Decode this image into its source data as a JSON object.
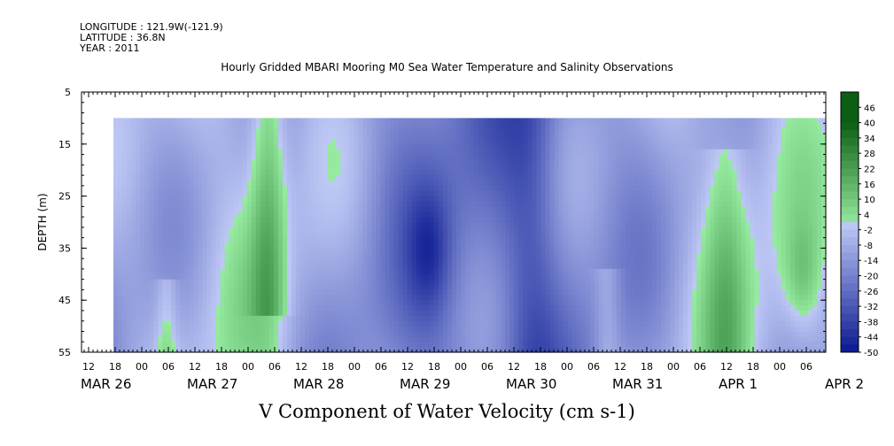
{
  "header": {
    "longitude": "LONGITUDE : 121.9W(-121.9)",
    "latitude": "LATITUDE : 36.8N",
    "year": "YEAR : 2011"
  },
  "chart_data": {
    "type": "heatmap",
    "title": "Hourly Gridded MBARI Mooring M0 Sea Water Temperature and Salinity Observations",
    "xlabel": "V Component of Water Velocity (cm s-1)",
    "ylabel": "DEPTH (m)",
    "y_ticks": [
      "5",
      "15",
      "25",
      "35",
      "45",
      "55"
    ],
    "ylim": [
      55,
      5
    ],
    "x_hour_ticks": [
      "12",
      "18",
      "00",
      "06",
      "12",
      "18",
      "00",
      "06",
      "12",
      "18",
      "00",
      "06",
      "12",
      "18",
      "00",
      "06",
      "12",
      "18",
      "00",
      "06",
      "12",
      "18",
      "00",
      "06",
      "12",
      "18",
      "00",
      "06"
    ],
    "x_date_labels": [
      "MAR 26",
      "MAR 27",
      "MAR 28",
      "MAR 29",
      "MAR 30",
      "MAR 31",
      "APR  1",
      "APR  2"
    ],
    "data_depth_range": [
      10,
      55
    ],
    "colorbar": {
      "labels": [
        "46",
        "40",
        "34",
        "28",
        "22",
        "16",
        "10",
        "4",
        "-2",
        "-8",
        "-14",
        "-20",
        "-26",
        "-32",
        "-38",
        "-44",
        "-50"
      ],
      "range": [
        -50,
        52
      ],
      "positive_color": "#7ee39a",
      "negative_color": "#8aa4ea",
      "extreme_positive_color": "#0a4d1a",
      "extreme_negative_color": "#0a0a6e"
    },
    "features": [
      {
        "time_hours_from_mar26_00": 42,
        "depth_range": [
          10,
          48
        ],
        "sign": "positive",
        "note": "band near MAR 27 18-00"
      },
      {
        "time_hours_from_mar26_00": 80,
        "depth_range": [
          10,
          55
        ],
        "sign": "negative",
        "note": "core near MAR 29 12 at ~35 m"
      },
      {
        "time_hours_from_mar26_00": 104,
        "depth_range": [
          10,
          40
        ],
        "sign": "negative",
        "note": "strong near MAR 30 00-06"
      },
      {
        "time_hours_from_mar26_00": 150,
        "depth_range": [
          15,
          55
        ],
        "sign": "positive",
        "note": "patches near APR 1-2"
      }
    ]
  }
}
